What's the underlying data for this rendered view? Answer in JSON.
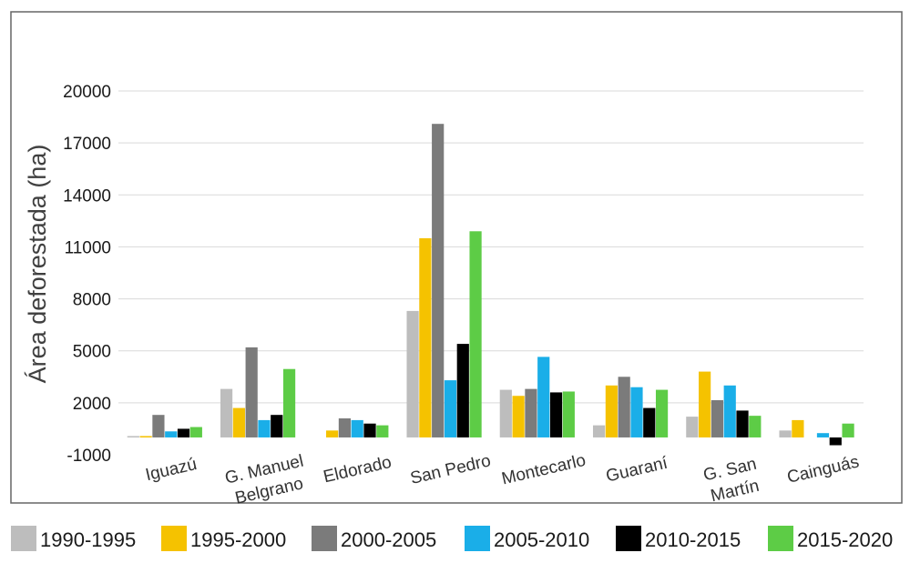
{
  "chart_data": {
    "type": "bar",
    "title": "",
    "xlabel": "",
    "ylabel": "Área deforestada (ha)",
    "ylim": [
      -1000,
      20000
    ],
    "yticks": [
      20000,
      17000,
      14000,
      11000,
      8000,
      5000,
      2000,
      -1000
    ],
    "ytick_labels": [
      "20000",
      "17000",
      "14000",
      "11000",
      "8000",
      "5000",
      "2000",
      "-1000"
    ],
    "grid": true,
    "legend_position": "bottom",
    "categories": [
      [
        "Iguazú"
      ],
      [
        "G. Manuel",
        "Belgrano"
      ],
      [
        "Eldorado"
      ],
      [
        "San Pedro"
      ],
      [
        "Montecarlo"
      ],
      [
        "Guaraní"
      ],
      [
        "G. San",
        "Martín"
      ],
      [
        "Cainguás"
      ]
    ],
    "series": [
      {
        "name": "1990-1995",
        "color": "#bdbdbd",
        "values": [
          80,
          2800,
          0,
          7300,
          2750,
          700,
          1200,
          400
        ]
      },
      {
        "name": "1995-2000",
        "color": "#f5c200",
        "values": [
          80,
          1700,
          400,
          11500,
          2400,
          3000,
          3800,
          1000
        ]
      },
      {
        "name": "2000-2005",
        "color": "#7b7b7b",
        "values": [
          1300,
          5200,
          1100,
          18100,
          2800,
          3500,
          2150,
          0
        ]
      },
      {
        "name": "2005-2010",
        "color": "#1aaee8",
        "values": [
          350,
          1000,
          1000,
          3300,
          4650,
          2900,
          3000,
          250
        ]
      },
      {
        "name": "2010-2015",
        "color": "#000000",
        "values": [
          500,
          1300,
          800,
          5400,
          2600,
          1700,
          1550,
          -450
        ]
      },
      {
        "name": "2015-2020",
        "color": "#5dcc46",
        "values": [
          600,
          3950,
          700,
          11900,
          2650,
          2750,
          1250,
          800
        ]
      }
    ]
  }
}
